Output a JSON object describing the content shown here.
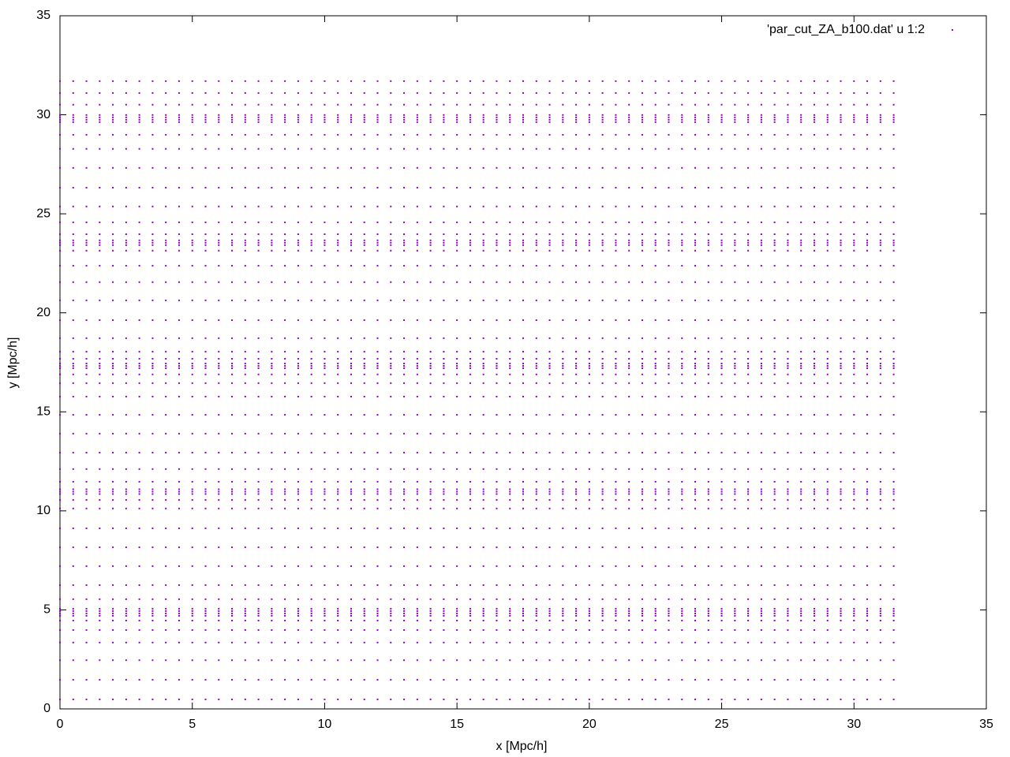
{
  "chart_data": {
    "type": "scatter",
    "xlabel": "x [Mpc/h]",
    "ylabel": "y [Mpc/h]",
    "xlim": [
      0,
      35
    ],
    "ylim": [
      0,
      35
    ],
    "xticks": [
      0,
      5,
      10,
      15,
      20,
      25,
      30,
      35
    ],
    "yticks": [
      0,
      5,
      10,
      15,
      20,
      25,
      30,
      35
    ],
    "grid": false,
    "legend": "top-right",
    "series": [
      {
        "name": "'par_cut_ZA_b100.dat' u 1:2",
        "color": "#9400d3",
        "x_grid": [
          0,
          0.5,
          1,
          1.5,
          2,
          2.5,
          3,
          3.5,
          4,
          4.5,
          5,
          5.5,
          6,
          6.5,
          7,
          7.5,
          8,
          8.5,
          9,
          9.5,
          10,
          10.5,
          11,
          11.5,
          12,
          12.5,
          13,
          13.5,
          14,
          14.5,
          15,
          15.5,
          16,
          16.5,
          17,
          17.5,
          18,
          18.5,
          19,
          19.5,
          20,
          20.5,
          21,
          21.5,
          22,
          22.5,
          23,
          23.5,
          24,
          24.5,
          25,
          25.5,
          26,
          26.5,
          27,
          27.5,
          28,
          28.5,
          29,
          29.5,
          30,
          30.5,
          31,
          31.5
        ],
        "y_grid": [
          0.48,
          1.47,
          2.46,
          3.35,
          3.98,
          4.46,
          4.7,
          4.82,
          4.94,
          5.06,
          5.54,
          6.25,
          7.21,
          8.16,
          9.12,
          10.12,
          10.55,
          10.85,
          10.97,
          11.09,
          11.47,
          12.11,
          12.94,
          13.9,
          14.85,
          15.77,
          16.45,
          16.89,
          17.2,
          17.32,
          17.44,
          17.68,
          18.04,
          18.72,
          19.63,
          20.63,
          21.55,
          22.38,
          23.14,
          23.42,
          23.54,
          23.66,
          23.97,
          24.57,
          25.37,
          26.32,
          27.32,
          28.28,
          28.99,
          29.63,
          29.75,
          29.87,
          29.99,
          30.51,
          31.1,
          31.7
        ]
      }
    ]
  }
}
